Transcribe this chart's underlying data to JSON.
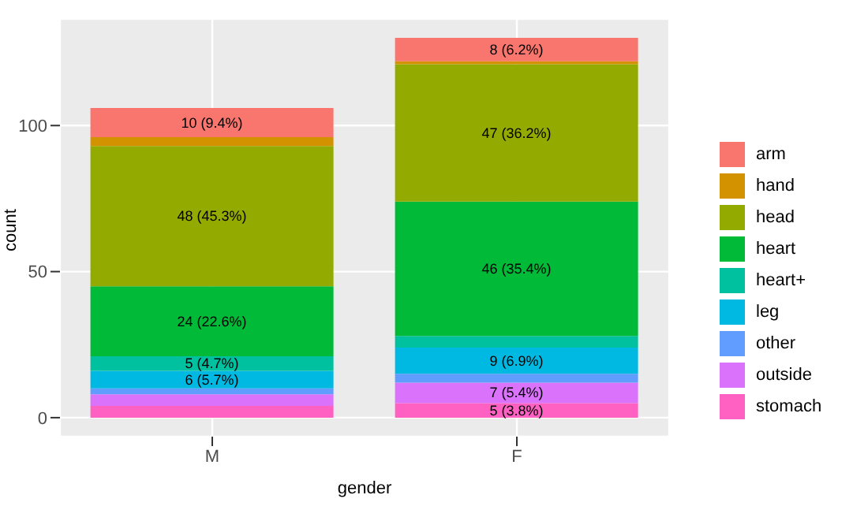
{
  "chart_data": {
    "type": "bar",
    "stacked": true,
    "xlabel": "gender",
    "ylabel": "count",
    "categories": [
      "M",
      "F"
    ],
    "series": [
      {
        "name": "stomach",
        "color": "#ff61c3",
        "values": [
          4,
          5
        ],
        "value_labels": [
          null,
          "5 (3.8%)"
        ]
      },
      {
        "name": "outside",
        "color": "#db72fb",
        "values": [
          4,
          7
        ],
        "value_labels": [
          null,
          "7 (5.4%)"
        ]
      },
      {
        "name": "other",
        "color": "#619cff",
        "values": [
          2,
          3
        ],
        "value_labels": [
          null,
          null
        ]
      },
      {
        "name": "leg",
        "color": "#00b9e3",
        "values": [
          6,
          9
        ],
        "value_labels": [
          "6 (5.7%)",
          "9 (6.9%)"
        ]
      },
      {
        "name": "heart+",
        "color": "#00c19f",
        "values": [
          5,
          4
        ],
        "value_labels": [
          "5 (4.7%)",
          null
        ]
      },
      {
        "name": "heart",
        "color": "#00ba38",
        "values": [
          24,
          46
        ],
        "value_labels": [
          "24 (22.6%)",
          "46 (35.4%)"
        ]
      },
      {
        "name": "head",
        "color": "#93aa00",
        "values": [
          48,
          47
        ],
        "value_labels": [
          "48 (45.3%)",
          "47 (36.2%)"
        ]
      },
      {
        "name": "hand",
        "color": "#d39200",
        "values": [
          3,
          1
        ],
        "value_labels": [
          null,
          null
        ]
      },
      {
        "name": "arm",
        "color": "#f8766d",
        "values": [
          10,
          8
        ],
        "value_labels": [
          "10 (9.4%)",
          "8 (6.2%)"
        ]
      }
    ],
    "ylim": [
      -6.5,
      136.5
    ],
    "yticks": [
      0,
      50,
      100
    ],
    "grid": true,
    "legend": "right"
  }
}
